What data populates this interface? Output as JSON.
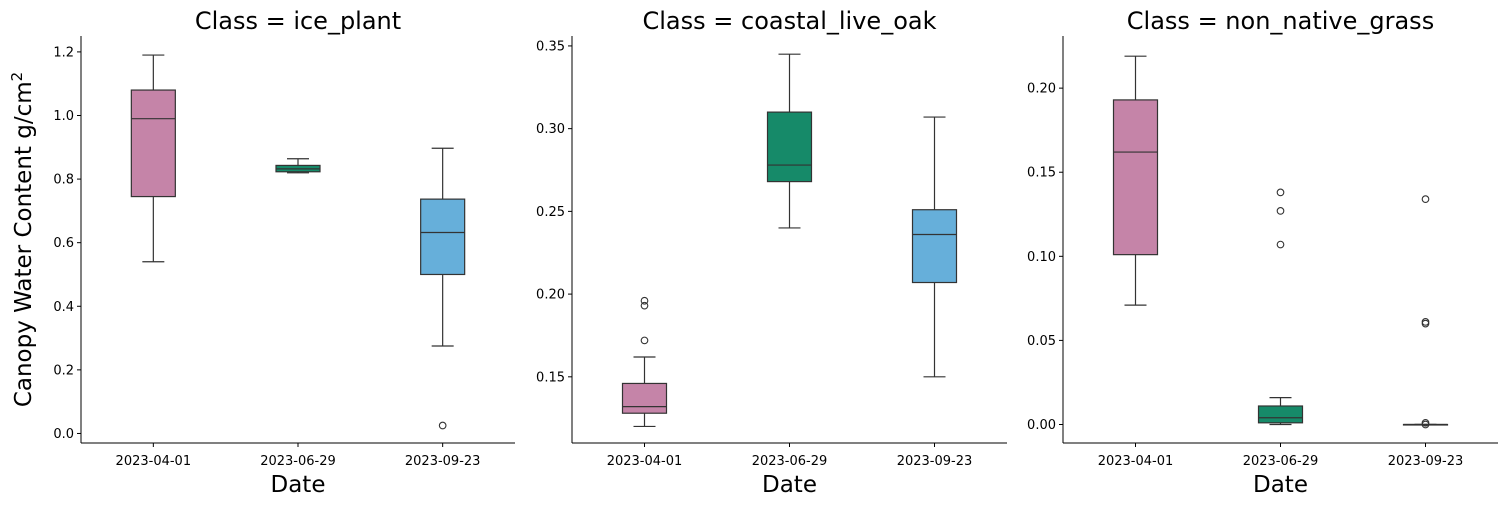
{
  "chart_data": [
    {
      "type": "box",
      "title": "Class = ice_plant",
      "xlabel": "Date",
      "ylabel": "Canopy Water Content g/cm",
      "ylabel_superscript": "2",
      "categories": [
        "2023-04-01",
        "2023-06-29",
        "2023-09-23"
      ],
      "colors": [
        "#c584a8",
        "#168a69",
        "#66afda"
      ],
      "ylim": [
        -0.03,
        1.25
      ],
      "yticks": [
        0.0,
        0.2,
        0.4,
        0.6,
        0.8,
        1.0,
        1.2
      ],
      "ytick_labels": [
        "0.0",
        "0.2",
        "0.4",
        "0.6",
        "0.8",
        "1.0",
        "1.2"
      ],
      "boxes": [
        {
          "category": "2023-04-01",
          "whislo": 0.54,
          "q1": 0.745,
          "med": 0.99,
          "q3": 1.08,
          "whishi": 1.19,
          "fliers": []
        },
        {
          "category": "2023-06-29",
          "whislo": 0.82,
          "q1": 0.823,
          "med": 0.832,
          "q3": 0.843,
          "whishi": 0.864,
          "fliers": []
        },
        {
          "category": "2023-09-23",
          "whislo": 0.275,
          "q1": 0.5,
          "med": 0.632,
          "q3": 0.737,
          "whishi": 0.897,
          "fliers": [
            0.025
          ]
        }
      ]
    },
    {
      "type": "box",
      "title": "Class = coastal_live_oak",
      "xlabel": "Date",
      "ylabel": "",
      "categories": [
        "2023-04-01",
        "2023-06-29",
        "2023-09-23"
      ],
      "colors": [
        "#c584a8",
        "#168a69",
        "#66afda"
      ],
      "ylim": [
        0.11,
        0.356
      ],
      "yticks": [
        0.15,
        0.2,
        0.25,
        0.3,
        0.35
      ],
      "ytick_labels": [
        "0.15",
        "0.20",
        "0.25",
        "0.30",
        "0.35"
      ],
      "boxes": [
        {
          "category": "2023-04-01",
          "whislo": 0.12,
          "q1": 0.128,
          "med": 0.132,
          "q3": 0.146,
          "whishi": 0.162,
          "fliers": [
            0.172,
            0.193,
            0.196
          ]
        },
        {
          "category": "2023-06-29",
          "whislo": 0.24,
          "q1": 0.268,
          "med": 0.278,
          "q3": 0.31,
          "whishi": 0.345,
          "fliers": []
        },
        {
          "category": "2023-09-23",
          "whislo": 0.15,
          "q1": 0.207,
          "med": 0.236,
          "q3": 0.251,
          "whishi": 0.307,
          "fliers": []
        }
      ]
    },
    {
      "type": "box",
      "title": "Class = non_native_grass",
      "xlabel": "Date",
      "ylabel": "",
      "categories": [
        "2023-04-01",
        "2023-06-29",
        "2023-09-23"
      ],
      "colors": [
        "#c584a8",
        "#168a69",
        "#66afda"
      ],
      "ylim": [
        -0.011,
        0.231
      ],
      "yticks": [
        0.0,
        0.05,
        0.1,
        0.15,
        0.2
      ],
      "ytick_labels": [
        "0.00",
        "0.05",
        "0.10",
        "0.15",
        "0.20"
      ],
      "boxes": [
        {
          "category": "2023-04-01",
          "whislo": 0.071,
          "q1": 0.101,
          "med": 0.162,
          "q3": 0.193,
          "whishi": 0.219,
          "fliers": []
        },
        {
          "category": "2023-06-29",
          "whislo": 0.0,
          "q1": 0.001,
          "med": 0.004,
          "q3": 0.011,
          "whishi": 0.016,
          "fliers": [
            0.107,
            0.127,
            0.138
          ]
        },
        {
          "category": "2023-09-23",
          "whislo": 0.0,
          "q1": 0.0,
          "med": 0.0,
          "q3": 0.0,
          "whishi": 0.0,
          "fliers": [
            0.0,
            0.001,
            0.06,
            0.061,
            0.134
          ]
        }
      ]
    }
  ]
}
